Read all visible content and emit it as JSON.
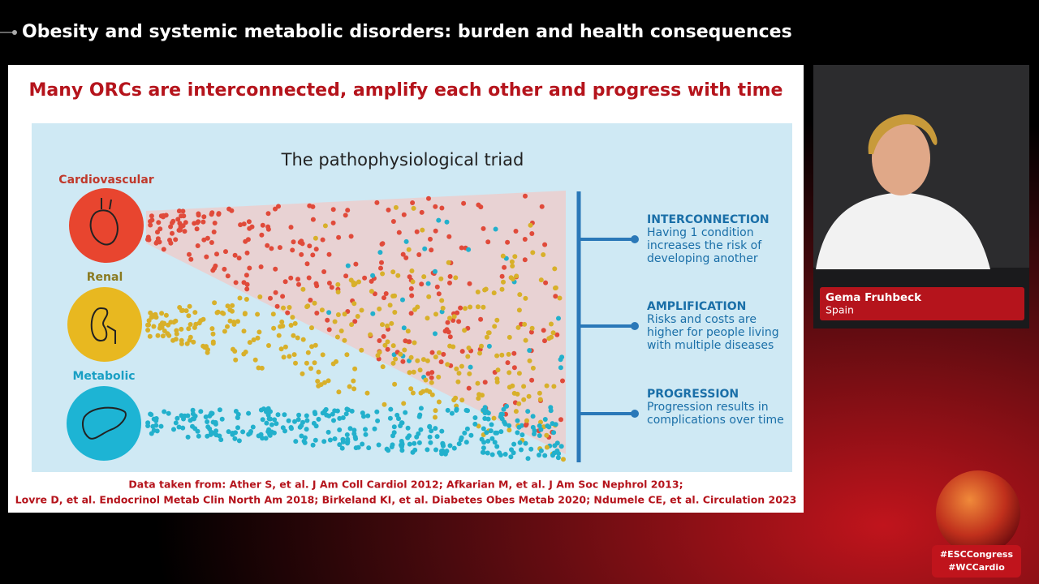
{
  "header": {
    "title": "Obesity and systemic metabolic disorders: burden and health consequences"
  },
  "slide": {
    "title": "Many ORCs are interconnected, amplify each other and progress with time",
    "diagram_title": "The pathophysiological triad",
    "conditions": [
      "Cardiovascular",
      "Renal",
      "Metabolic"
    ],
    "items": [
      {
        "heading": "INTERCONNECTION",
        "lines": [
          "Having 1 condition",
          "increases the risk of",
          "developing another"
        ]
      },
      {
        "heading": "AMPLIFICATION",
        "lines": [
          "Risks and costs are",
          "higher for people living",
          "with multiple diseases"
        ]
      },
      {
        "heading": "PROGRESSION",
        "lines": [
          "Progression results in",
          "complications over time"
        ]
      }
    ],
    "citations": [
      "Data taken from: Ather S, et al. J Am Coll Cardiol 2012; Afkarian M, et al. J Am Soc Nephrol 2013;",
      "Lovre D, et al. Endocrinol Metab Clin North Am 2018; Birkeland KI, et al. Diabetes Obes Metab 2020; Ndumele CE, et al. Circulation 2023"
    ]
  },
  "speaker": {
    "name": "Gema Fruhbeck",
    "country": "Spain"
  },
  "hashtags": [
    "#ESCCongress",
    "#WCCardio"
  ]
}
